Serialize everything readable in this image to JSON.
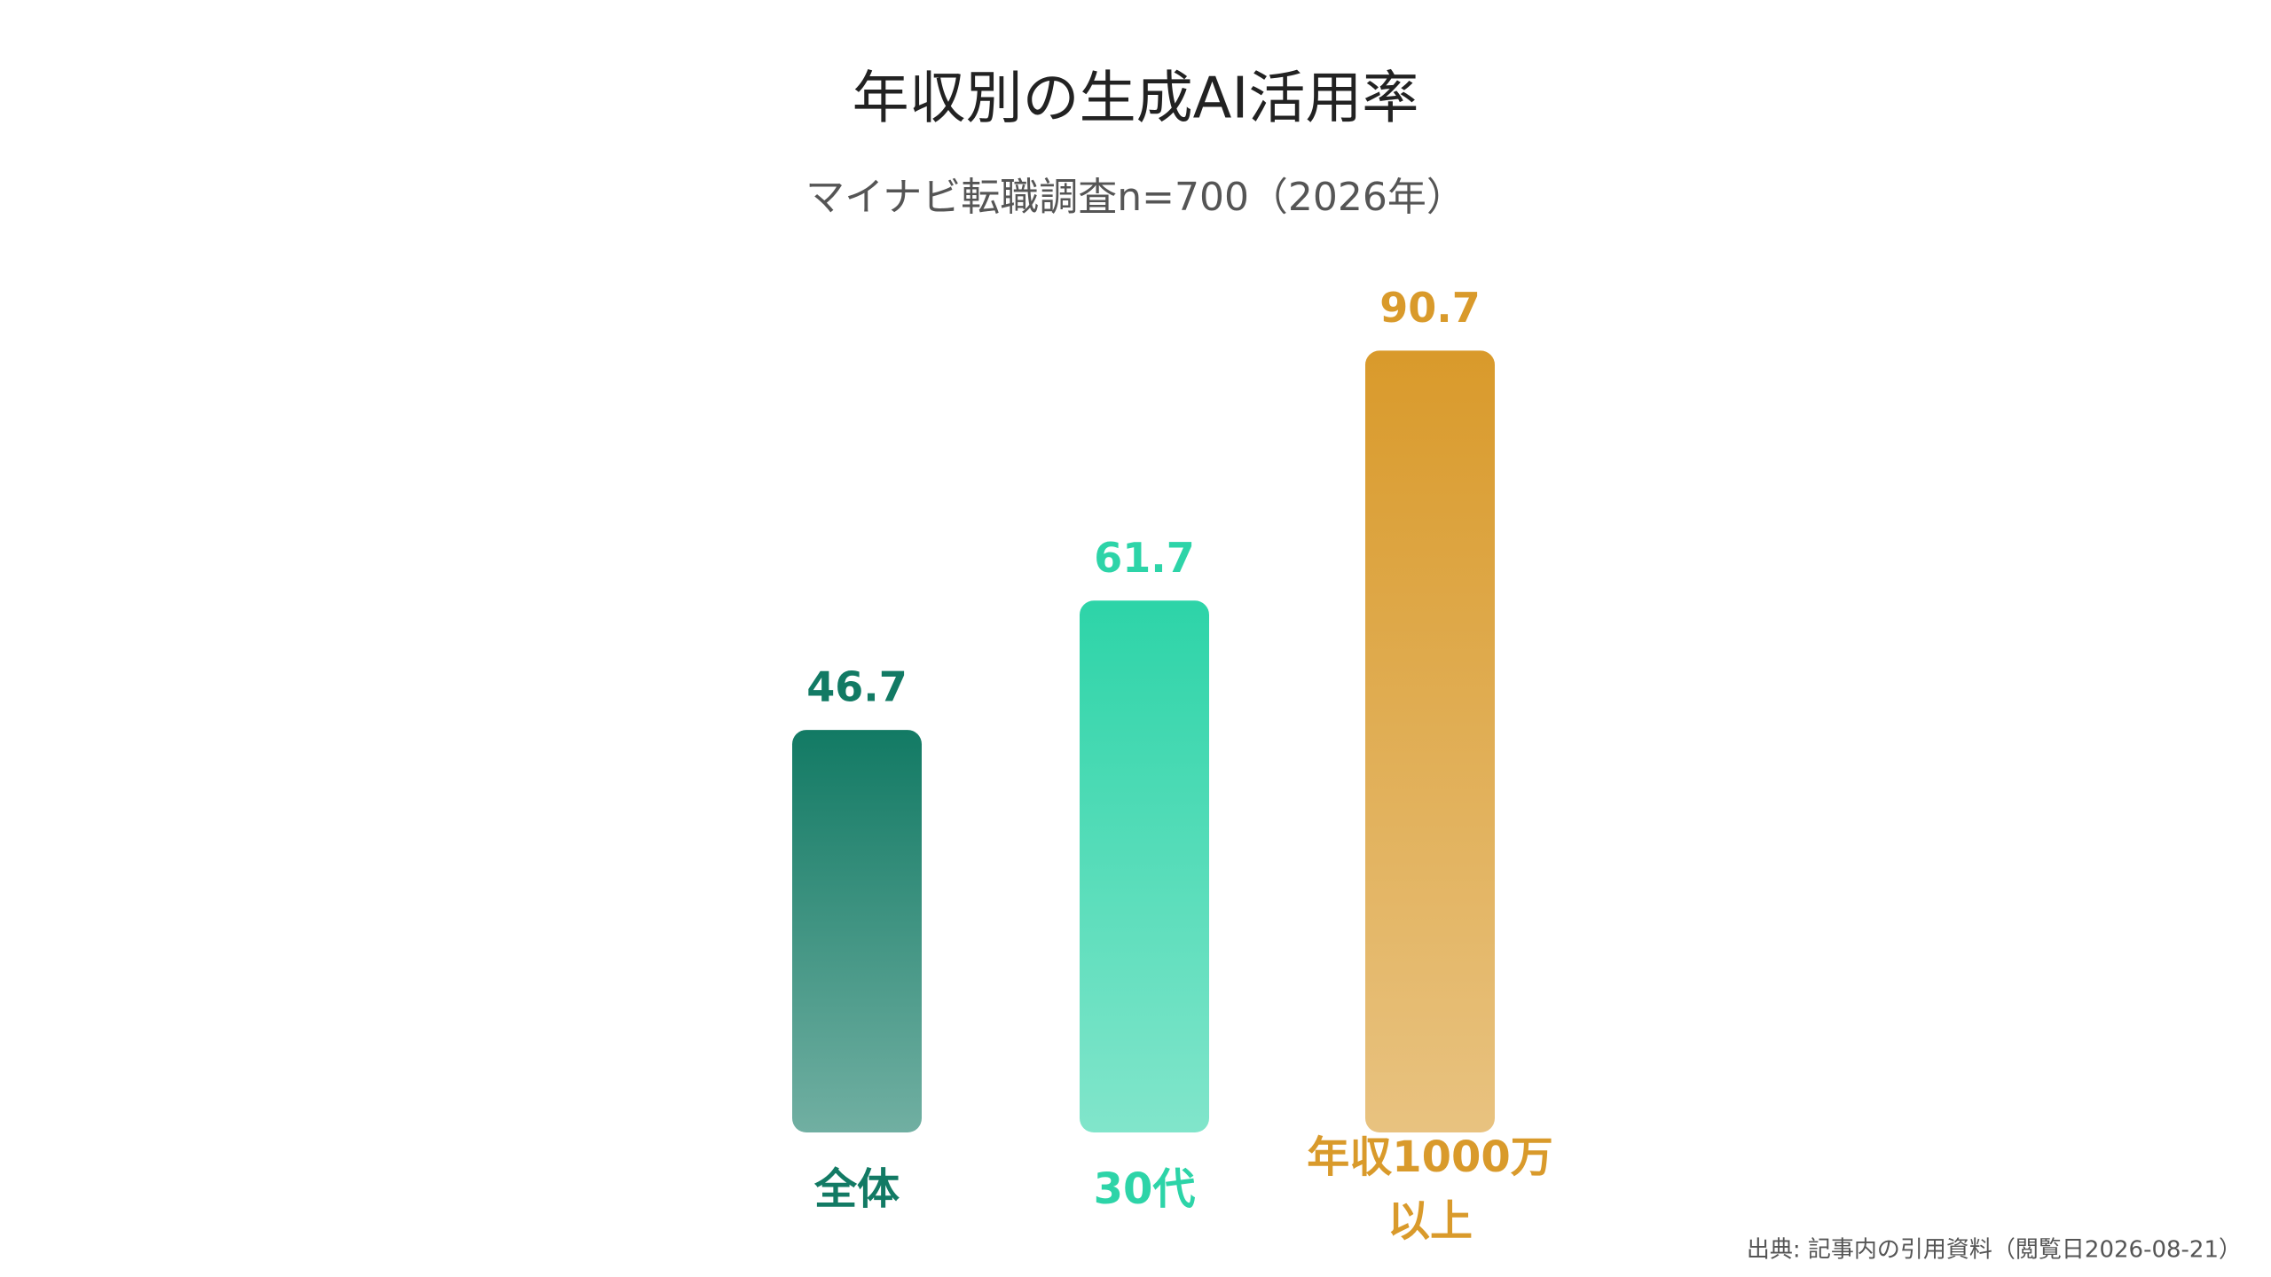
{
  "chart_data": {
    "type": "bar",
    "title": "年収別の生成AI活用率",
    "subtitle": "マイナビ転職調査n=700（2026年）",
    "categories": [
      "全体",
      "30代",
      "年収1000万\n以上"
    ],
    "values": [
      46.7,
      61.7,
      90.7
    ],
    "colors": [
      "#127a64",
      "#2dd4a8",
      "#d99a2b"
    ],
    "ylim": [
      0,
      100
    ],
    "grid": false
  },
  "source": "出典: 記事内の引用資料（閲覧日2026-08-21）"
}
